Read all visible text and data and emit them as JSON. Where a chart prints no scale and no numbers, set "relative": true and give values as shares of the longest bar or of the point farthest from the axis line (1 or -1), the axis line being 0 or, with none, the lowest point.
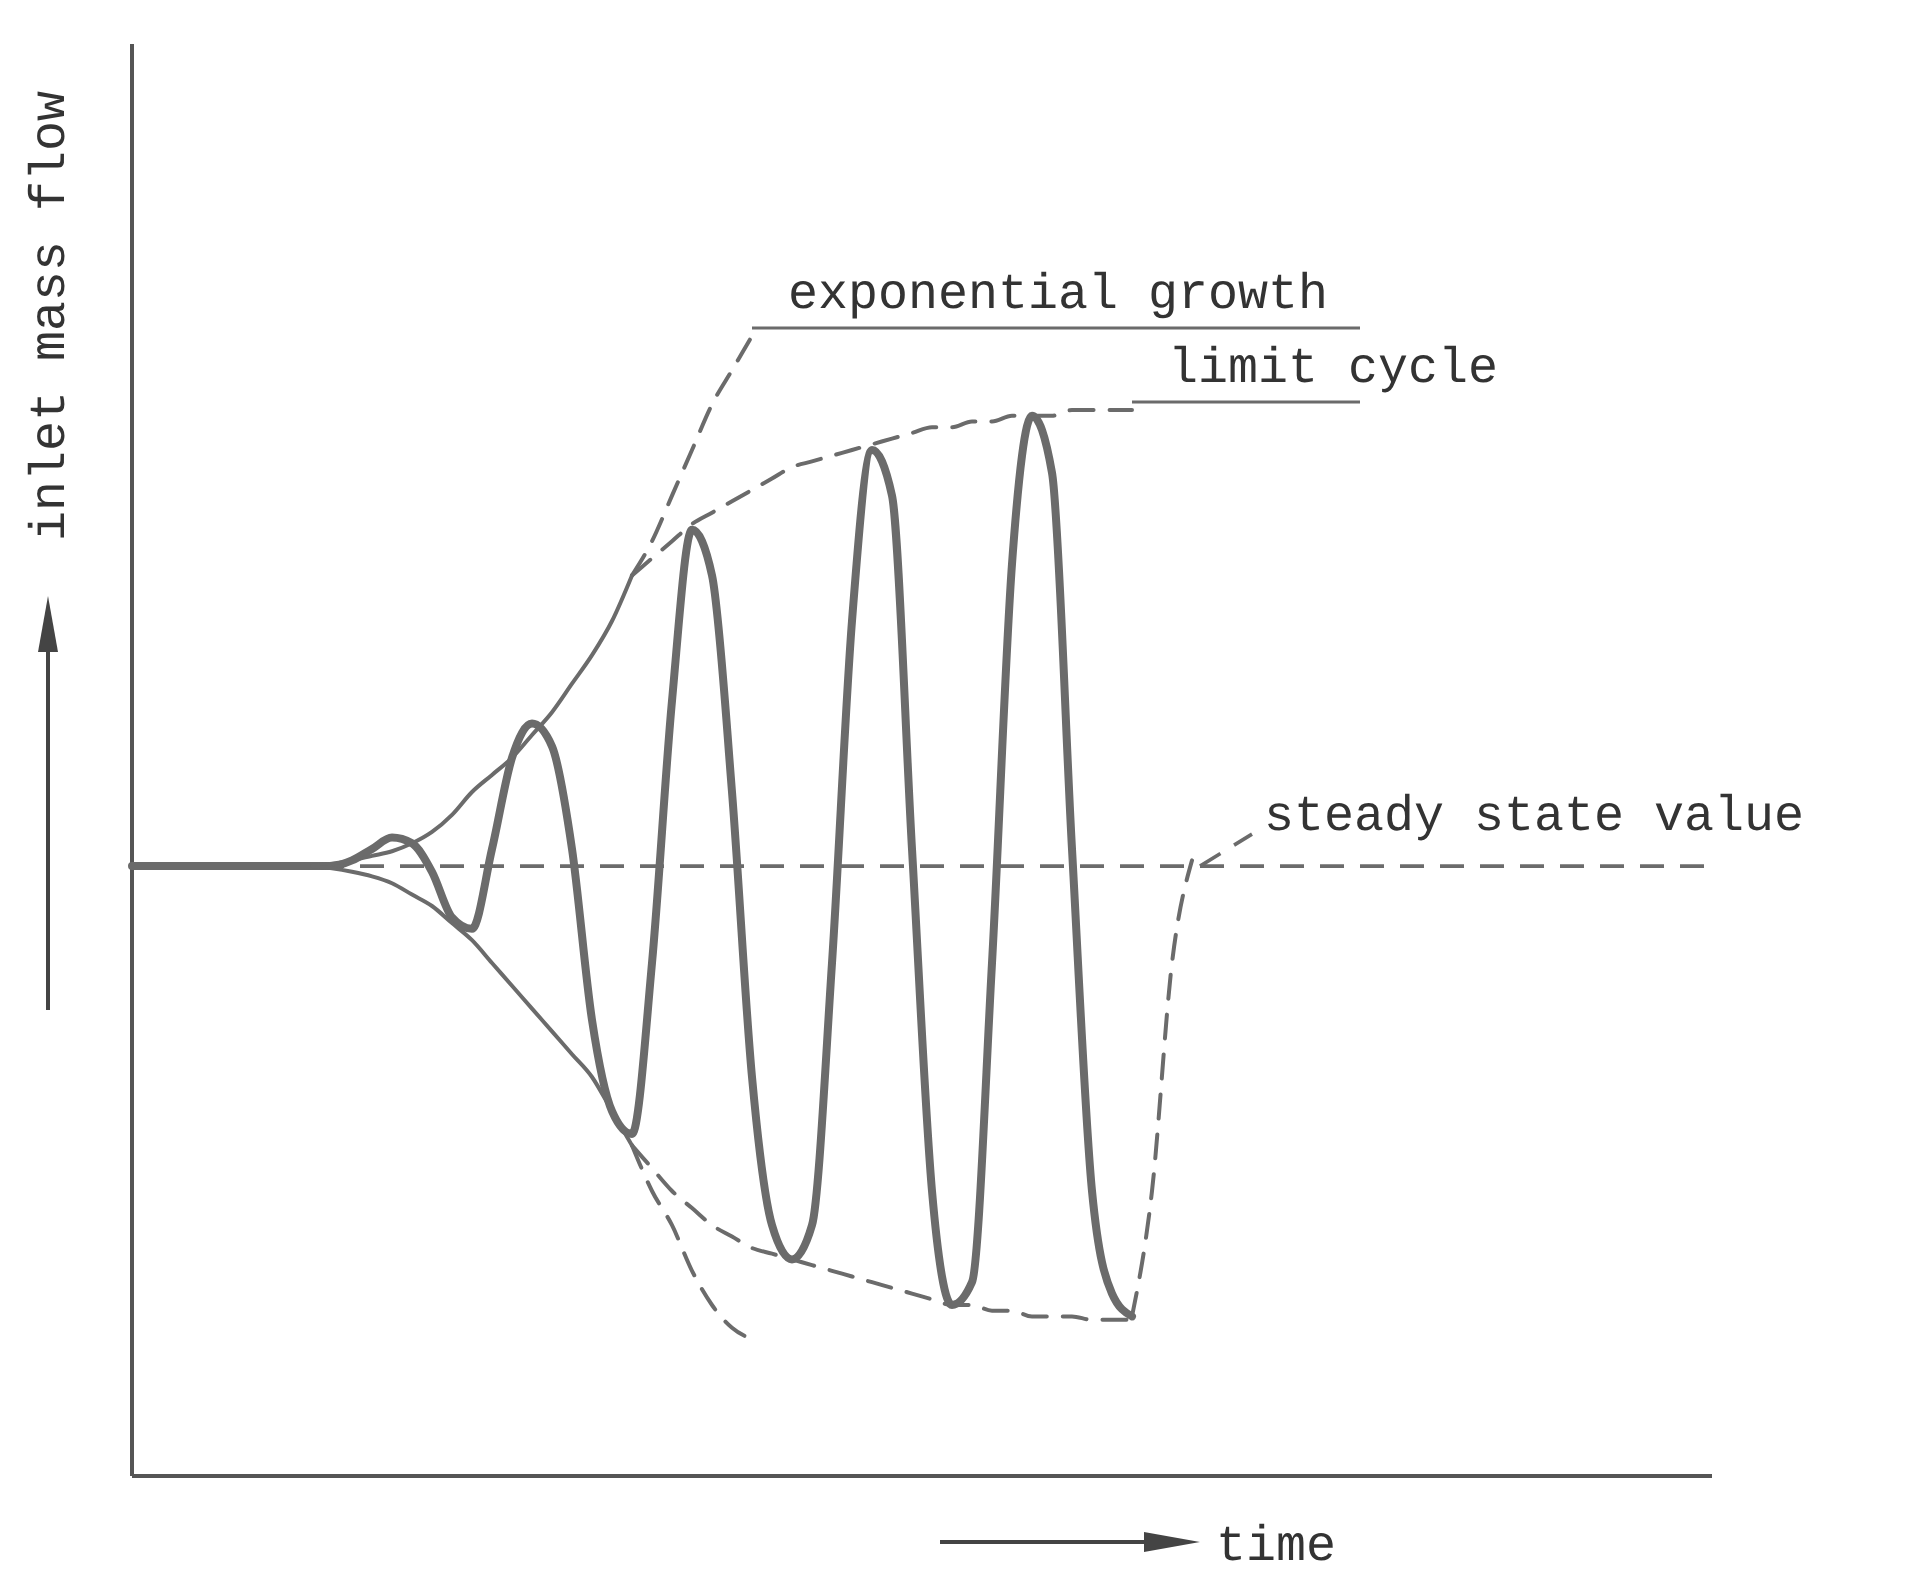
{
  "chart_data": {
    "type": "line",
    "relative": true,
    "xlabel": "time",
    "ylabel": "inlet mass flow",
    "categories": [
      null,
      null,
      null,
      null,
      null,
      null,
      null,
      null,
      null,
      null,
      null,
      null,
      null,
      null,
      null,
      null,
      null,
      null,
      null,
      null,
      null,
      null,
      null,
      null,
      null,
      null,
      null,
      null,
      null,
      null,
      null,
      null,
      null,
      null,
      null,
      null,
      null,
      null,
      null,
      null,
      null,
      null,
      null,
      null,
      null,
      null,
      null,
      null,
      null,
      null,
      null,
      null,
      null,
      null,
      null,
      null,
      null,
      null,
      null,
      null,
      null,
      null,
      null,
      null,
      null,
      null,
      null,
      null,
      null,
      null,
      null,
      null,
      null,
      null,
      null,
      null,
      null,
      null,
      null,
      null
    ],
    "ref_lines": [
      {
        "axis": "y",
        "value": 0.535,
        "label": "steady state value",
        "line_style": "dashed",
        "color": "#6b6b6b"
      }
    ],
    "series": [
      {
        "color": "#6b6b6b",
        "line_style": "solid",
        "values": [
          0.535,
          0.535,
          0.535,
          0.535,
          0.535,
          0.535,
          0.535,
          0.535,
          0.535,
          0.535,
          0.535,
          0.54,
          0.55,
          0.56,
          0.555,
          0.53,
          0.49,
          0.48,
          0.55,
          0.63,
          0.66,
          0.64,
          0.55,
          0.4,
          0.32,
          0.3,
          0.45,
          0.68,
          0.83,
          0.79,
          0.6,
          0.35,
          0.22,
          0.19,
          0.22,
          0.45,
          0.75,
          0.9,
          0.86,
          0.55,
          0.25,
          0.15,
          0.17,
          0.45,
          0.8,
          0.93,
          0.88,
          0.55,
          0.25,
          0.16,
          0.14,
          null,
          null,
          null,
          null,
          null,
          null,
          null,
          null,
          null,
          null,
          null,
          null,
          null,
          null,
          null,
          null,
          null,
          null,
          null,
          null,
          null,
          null,
          null,
          null,
          null,
          null,
          null,
          null,
          null
        ]
      },
      {
        "color": "#6b6b6b",
        "line_style": "dashed",
        "values": [
          null,
          null,
          null,
          null,
          null,
          null,
          null,
          null,
          null,
          null,
          null,
          null,
          null,
          null,
          null,
          null,
          null,
          null,
          null,
          null,
          null,
          null,
          null,
          null,
          null,
          null,
          null,
          null,
          null,
          null,
          null,
          null,
          null,
          null,
          null,
          null,
          null,
          null,
          null,
          null,
          null,
          null,
          null,
          null,
          null,
          null,
          null,
          null,
          null,
          null,
          0.14,
          0.25,
          0.45,
          0.54,
          null,
          null,
          null,
          null,
          null,
          null,
          null,
          null,
          null,
          null,
          null,
          null,
          null,
          null,
          null,
          null,
          null,
          null,
          null,
          null,
          null,
          null,
          null,
          null,
          null,
          null
        ]
      },
      {
        "color": "#6b6b6b",
        "line_style": "solid",
        "values": [
          null,
          null,
          null,
          null,
          null,
          null,
          null,
          null,
          null,
          0.535,
          0.537,
          0.54,
          0.544,
          0.548,
          0.555,
          0.565,
          0.58,
          0.6,
          0.615,
          0.63,
          0.65,
          0.67,
          0.695,
          0.72,
          0.75,
          0.79,
          null,
          null,
          null,
          null,
          null,
          null,
          null,
          null,
          null,
          null,
          null,
          null,
          null,
          null,
          null,
          null,
          null,
          null,
          null,
          null,
          null,
          null,
          null,
          null,
          null,
          null,
          null,
          null,
          null,
          null,
          null,
          null,
          null,
          null,
          null,
          null,
          null,
          null,
          null,
          null,
          null,
          null,
          null,
          null,
          null,
          null,
          null,
          null,
          null,
          null,
          null,
          null,
          null,
          null
        ]
      },
      {
        "color": "#6b6b6b",
        "line_style": "solid",
        "values": [
          null,
          null,
          null,
          null,
          null,
          null,
          null,
          null,
          null,
          0.535,
          0.533,
          0.53,
          0.526,
          0.52,
          0.51,
          0.5,
          0.485,
          0.47,
          0.45,
          0.43,
          0.41,
          0.39,
          0.37,
          0.35,
          0.32,
          0.29,
          null,
          null,
          null,
          null,
          null,
          null,
          null,
          null,
          null,
          null,
          null,
          null,
          null,
          null,
          null,
          null,
          null,
          null,
          null,
          null,
          null,
          null,
          null,
          null,
          null,
          null,
          null,
          null,
          null,
          null,
          null,
          null,
          null,
          null,
          null,
          null,
          null,
          null,
          null,
          null,
          null,
          null,
          null,
          null,
          null,
          null,
          null,
          null,
          null,
          null,
          null,
          null,
          null,
          null
        ]
      },
      {
        "name": "exponential growth",
        "color": "#6b6b6b",
        "line_style": "dashed",
        "values": [
          null,
          null,
          null,
          null,
          null,
          null,
          null,
          null,
          null,
          null,
          null,
          null,
          null,
          null,
          null,
          null,
          null,
          null,
          null,
          null,
          null,
          null,
          null,
          null,
          null,
          0.79,
          0.82,
          0.86,
          0.9,
          0.94,
          0.97,
          1.0,
          null,
          null,
          null,
          null,
          null,
          null,
          null,
          null,
          null,
          null,
          null,
          null,
          null,
          null,
          null,
          null,
          null,
          null,
          null,
          null,
          null,
          null,
          null,
          null,
          null,
          null,
          null,
          null,
          null,
          null,
          null,
          null,
          null,
          null,
          null,
          null,
          null,
          null,
          null,
          null,
          null,
          null,
          null,
          null,
          null,
          null,
          null,
          null
        ]
      },
      {
        "color": "#6b6b6b",
        "line_style": "dashed",
        "values": [
          null,
          null,
          null,
          null,
          null,
          null,
          null,
          null,
          null,
          null,
          null,
          null,
          null,
          null,
          null,
          null,
          null,
          null,
          null,
          null,
          null,
          null,
          null,
          null,
          null,
          0.29,
          0.25,
          0.22,
          0.18,
          0.15,
          0.13,
          0.12,
          null,
          null,
          null,
          null,
          null,
          null,
          null,
          null,
          null,
          null,
          null,
          null,
          null,
          null,
          null,
          null,
          null,
          null,
          null,
          null,
          null,
          null,
          null,
          null,
          null,
          null,
          null,
          null,
          null,
          null,
          null,
          null,
          null,
          null,
          null,
          null,
          null,
          null,
          null,
          null,
          null,
          null,
          null,
          null,
          null,
          null,
          null,
          null
        ]
      },
      {
        "name": "limit cycle",
        "color": "#6b6b6b",
        "line_style": "dashed",
        "values": [
          null,
          null,
          null,
          null,
          null,
          null,
          null,
          null,
          null,
          null,
          null,
          null,
          null,
          null,
          null,
          null,
          null,
          null,
          null,
          null,
          null,
          null,
          null,
          null,
          null,
          0.79,
          0.805,
          0.82,
          0.835,
          0.845,
          0.855,
          0.865,
          0.875,
          0.885,
          0.89,
          0.895,
          0.9,
          0.905,
          0.91,
          0.915,
          0.92,
          0.92,
          0.925,
          0.925,
          0.93,
          0.93,
          0.93,
          0.935,
          0.935,
          0.935,
          0.935,
          null,
          null,
          null,
          null,
          null,
          null,
          null,
          null,
          null,
          null,
          null,
          null,
          null,
          null,
          null,
          null,
          null,
          null,
          null,
          null,
          null,
          null,
          null,
          null,
          null,
          null,
          null,
          null,
          null
        ]
      },
      {
        "color": "#6b6b6b",
        "line_style": "dashed",
        "values": [
          null,
          null,
          null,
          null,
          null,
          null,
          null,
          null,
          null,
          null,
          null,
          null,
          null,
          null,
          null,
          null,
          null,
          null,
          null,
          null,
          null,
          null,
          null,
          null,
          null,
          0.29,
          0.27,
          0.25,
          0.235,
          0.22,
          0.21,
          0.2,
          0.195,
          0.19,
          0.185,
          0.18,
          0.175,
          0.17,
          0.165,
          0.16,
          0.155,
          0.15,
          0.15,
          0.145,
          0.145,
          0.14,
          0.14,
          0.14,
          0.137,
          0.137,
          0.137,
          null,
          null,
          null,
          null,
          null,
          null,
          null,
          null,
          null,
          null,
          null,
          null,
          null,
          null,
          null,
          null,
          null,
          null,
          null,
          null,
          null,
          null,
          null,
          null,
          null,
          null,
          null,
          null,
          null
        ]
      }
    ]
  }
}
